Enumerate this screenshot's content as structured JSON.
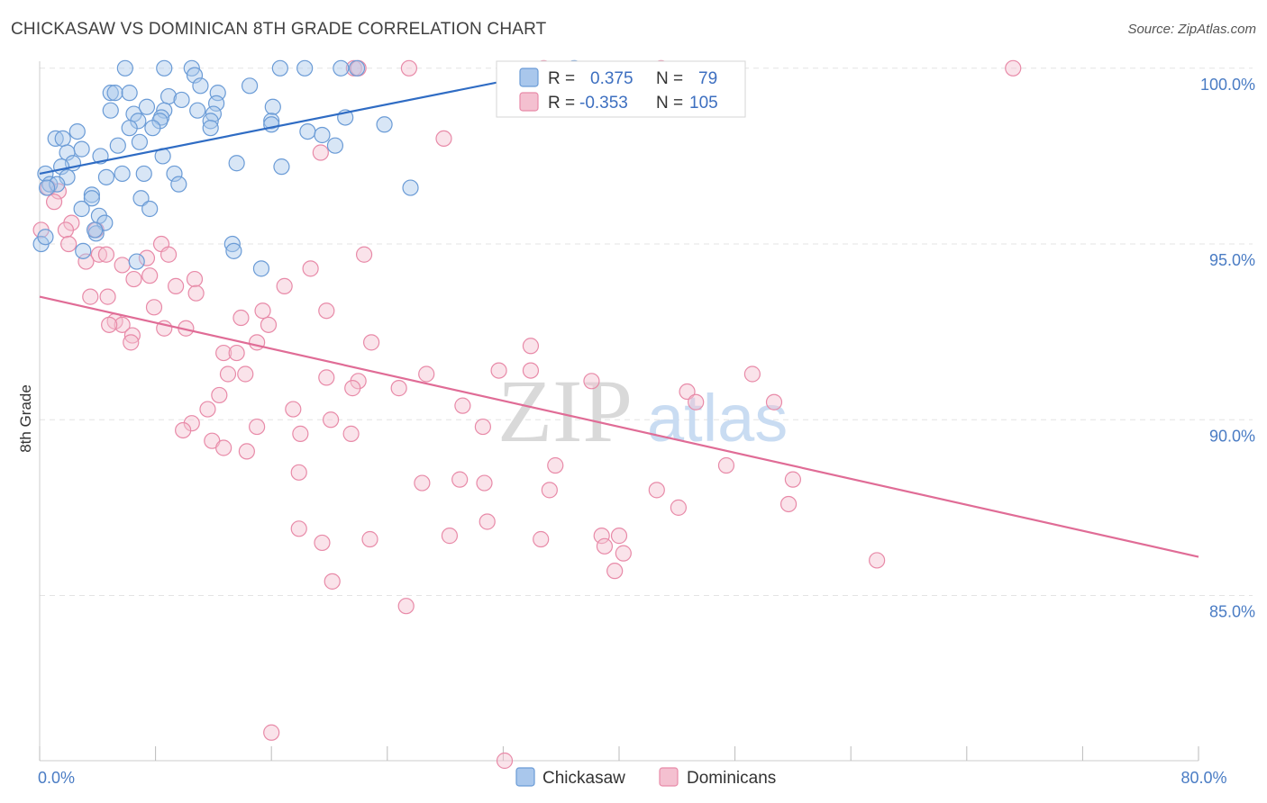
{
  "title": "CHICKASAW VS DOMINICAN 8TH GRADE CORRELATION CHART",
  "source": "Source: ZipAtlas.com",
  "watermark": {
    "zip": "ZIP",
    "atlas": "atlas"
  },
  "colors": {
    "blue_fill": "#a9c7ec",
    "blue_stroke": "#6a9bd6",
    "blue_line": "#2f6cc4",
    "pink_fill": "#f4c0d0",
    "pink_stroke": "#e88aa8",
    "pink_line": "#e06c96",
    "tick_color": "#4a7cc4",
    "grid": "#e3e3e3"
  },
  "legend": {
    "rows": [
      {
        "r_label": "R =",
        "r_value": "0.375",
        "n_label": "N =",
        "n_value": "79",
        "series": "blue"
      },
      {
        "r_label": "R =",
        "r_value": "-0.353",
        "n_label": "N =",
        "n_value": "105",
        "series": "pink"
      }
    ]
  },
  "bottom_legend": [
    {
      "label": "Chickasaw",
      "series": "blue"
    },
    {
      "label": "Dominicans",
      "series": "pink"
    }
  ],
  "chart_data": {
    "type": "scatter",
    "xlabel": "",
    "ylabel": "8th Grade",
    "xlim": [
      0,
      80
    ],
    "ylim": [
      80.3,
      100.2
    ],
    "x_tick_labels": [
      {
        "value": 0,
        "label": "0.0%"
      },
      {
        "value": 80,
        "label": "80.0%"
      }
    ],
    "y_tick_labels": [
      {
        "value": 100,
        "label": "100.0%"
      },
      {
        "value": 95,
        "label": "95.0%"
      },
      {
        "value": 90,
        "label": "90.0%"
      },
      {
        "value": 85,
        "label": "85.0%"
      }
    ],
    "grid": true,
    "legend_position": "top-center",
    "series": [
      {
        "name": "Chickasaw",
        "color": "blue",
        "trendline": {
          "x": [
            0,
            36.5
          ],
          "y": [
            97.0,
            100.0
          ]
        },
        "points": [
          [
            5.9,
            100
          ],
          [
            8.6,
            100
          ],
          [
            10.5,
            100
          ],
          [
            16.6,
            100
          ],
          [
            18.3,
            100
          ],
          [
            20.8,
            100
          ],
          [
            21.9,
            100
          ],
          [
            36.9,
            100
          ],
          [
            10.7,
            99.8
          ],
          [
            11.1,
            99.5
          ],
          [
            14.5,
            99.5
          ],
          [
            4.9,
            99.3
          ],
          [
            5.2,
            99.3
          ],
          [
            6.2,
            99.3
          ],
          [
            8.9,
            99.2
          ],
          [
            12.3,
            99.3
          ],
          [
            9.8,
            99.1
          ],
          [
            12.2,
            99.0
          ],
          [
            16.1,
            98.9
          ],
          [
            4.9,
            98.8
          ],
          [
            6.5,
            98.7
          ],
          [
            8.6,
            98.8
          ],
          [
            10.9,
            98.8
          ],
          [
            12.0,
            98.7
          ],
          [
            8.4,
            98.6
          ],
          [
            6.8,
            98.5
          ],
          [
            8.3,
            98.5
          ],
          [
            11.8,
            98.5
          ],
          [
            16.0,
            98.5
          ],
          [
            21.1,
            98.6
          ],
          [
            23.8,
            98.4
          ],
          [
            7.8,
            98.3
          ],
          [
            6.2,
            98.3
          ],
          [
            11.8,
            98.3
          ],
          [
            16.0,
            98.4
          ],
          [
            18.5,
            98.2
          ],
          [
            2.6,
            98.2
          ],
          [
            1.1,
            98.0
          ],
          [
            1.6,
            98.0
          ],
          [
            6.9,
            97.9
          ],
          [
            5.4,
            97.8
          ],
          [
            2.9,
            97.7
          ],
          [
            20.4,
            97.8
          ],
          [
            1.9,
            97.6
          ],
          [
            4.2,
            97.5
          ],
          [
            8.5,
            97.5
          ],
          [
            2.3,
            97.3
          ],
          [
            1.5,
            97.2
          ],
          [
            13.6,
            97.3
          ],
          [
            16.7,
            97.2
          ],
          [
            7.2,
            97.0
          ],
          [
            9.3,
            97.0
          ],
          [
            0.4,
            97.0
          ],
          [
            1.9,
            96.9
          ],
          [
            4.6,
            96.9
          ],
          [
            5.7,
            97.0
          ],
          [
            0.7,
            96.7
          ],
          [
            1.2,
            96.7
          ],
          [
            9.6,
            96.7
          ],
          [
            25.6,
            96.6
          ],
          [
            0.5,
            96.6
          ],
          [
            3.6,
            96.4
          ],
          [
            3.6,
            96.3
          ],
          [
            7.0,
            96.3
          ],
          [
            2.9,
            96.0
          ],
          [
            7.6,
            96.0
          ],
          [
            4.1,
            95.8
          ],
          [
            4.5,
            95.6
          ],
          [
            3.9,
            95.3
          ],
          [
            13.3,
            95.0
          ],
          [
            0.1,
            95.0
          ],
          [
            13.4,
            94.8
          ],
          [
            3.0,
            94.8
          ],
          [
            6.7,
            94.5
          ],
          [
            15.3,
            94.3
          ],
          [
            0.4,
            95.2
          ],
          [
            3.8,
            95.4
          ],
          [
            7.4,
            98.9
          ],
          [
            19.5,
            98.1
          ]
        ]
      },
      {
        "name": "Dominicans",
        "color": "pink",
        "trendline": {
          "x": [
            0,
            80
          ],
          "y": [
            93.5,
            86.1
          ]
        },
        "points": [
          [
            21.7,
            100
          ],
          [
            25.5,
            100
          ],
          [
            22.0,
            100
          ],
          [
            34.8,
            100
          ],
          [
            42.9,
            100
          ],
          [
            67.2,
            100
          ],
          [
            27.9,
            98.0
          ],
          [
            19.4,
            97.6
          ],
          [
            0.6,
            96.6
          ],
          [
            1.3,
            96.5
          ],
          [
            1.0,
            96.2
          ],
          [
            2.2,
            95.6
          ],
          [
            3.9,
            95.4
          ],
          [
            1.8,
            95.4
          ],
          [
            8.4,
            95.0
          ],
          [
            8.9,
            94.7
          ],
          [
            4.1,
            94.7
          ],
          [
            4.6,
            94.7
          ],
          [
            7.4,
            94.6
          ],
          [
            22.4,
            94.7
          ],
          [
            3.2,
            94.5
          ],
          [
            5.7,
            94.4
          ],
          [
            2.0,
            95.0
          ],
          [
            18.7,
            94.3
          ],
          [
            10.7,
            94.0
          ],
          [
            6.5,
            94.0
          ],
          [
            7.6,
            94.1
          ],
          [
            16.9,
            93.8
          ],
          [
            9.4,
            93.8
          ],
          [
            10.8,
            93.6
          ],
          [
            3.5,
            93.5
          ],
          [
            4.7,
            93.5
          ],
          [
            7.9,
            93.2
          ],
          [
            19.8,
            93.1
          ],
          [
            15.4,
            93.1
          ],
          [
            13.9,
            92.9
          ],
          [
            5.2,
            92.8
          ],
          [
            5.7,
            92.7
          ],
          [
            4.8,
            92.7
          ],
          [
            15.8,
            92.7
          ],
          [
            10.1,
            92.6
          ],
          [
            8.6,
            92.6
          ],
          [
            6.4,
            92.4
          ],
          [
            22.9,
            92.2
          ],
          [
            15.0,
            92.2
          ],
          [
            6.3,
            92.2
          ],
          [
            33.9,
            92.1
          ],
          [
            12.7,
            91.9
          ],
          [
            13.6,
            91.9
          ],
          [
            13.0,
            91.3
          ],
          [
            14.2,
            91.3
          ],
          [
            26.7,
            91.3
          ],
          [
            31.7,
            91.4
          ],
          [
            33.9,
            91.4
          ],
          [
            38.1,
            91.1
          ],
          [
            49.2,
            91.3
          ],
          [
            19.8,
            91.2
          ],
          [
            22.0,
            91.1
          ],
          [
            21.6,
            90.9
          ],
          [
            24.8,
            90.9
          ],
          [
            12.4,
            90.7
          ],
          [
            44.7,
            90.8
          ],
          [
            50.7,
            90.5
          ],
          [
            45.3,
            90.5
          ],
          [
            29.2,
            90.4
          ],
          [
            17.5,
            90.3
          ],
          [
            11.6,
            90.3
          ],
          [
            20.1,
            90.0
          ],
          [
            10.5,
            89.9
          ],
          [
            9.9,
            89.7
          ],
          [
            15.0,
            89.8
          ],
          [
            30.6,
            89.8
          ],
          [
            18.0,
            89.6
          ],
          [
            21.5,
            89.6
          ],
          [
            11.9,
            89.4
          ],
          [
            12.7,
            89.2
          ],
          [
            14.3,
            89.1
          ],
          [
            35.6,
            88.7
          ],
          [
            47.4,
            88.7
          ],
          [
            17.9,
            88.5
          ],
          [
            52.0,
            88.3
          ],
          [
            26.4,
            88.2
          ],
          [
            29.0,
            88.3
          ],
          [
            30.7,
            88.2
          ],
          [
            35.2,
            88.0
          ],
          [
            42.6,
            88.0
          ],
          [
            44.1,
            87.5
          ],
          [
            51.7,
            87.6
          ],
          [
            30.9,
            87.1
          ],
          [
            17.9,
            86.9
          ],
          [
            28.3,
            86.7
          ],
          [
            38.8,
            86.7
          ],
          [
            40.0,
            86.7
          ],
          [
            19.5,
            86.5
          ],
          [
            22.8,
            86.6
          ],
          [
            34.6,
            86.6
          ],
          [
            39.0,
            86.4
          ],
          [
            40.3,
            86.2
          ],
          [
            57.8,
            86.0
          ],
          [
            39.7,
            85.7
          ],
          [
            20.2,
            85.4
          ],
          [
            25.3,
            84.7
          ],
          [
            16.0,
            81.1
          ],
          [
            32.1,
            80.3
          ],
          [
            0.1,
            95.4
          ]
        ]
      }
    ]
  }
}
